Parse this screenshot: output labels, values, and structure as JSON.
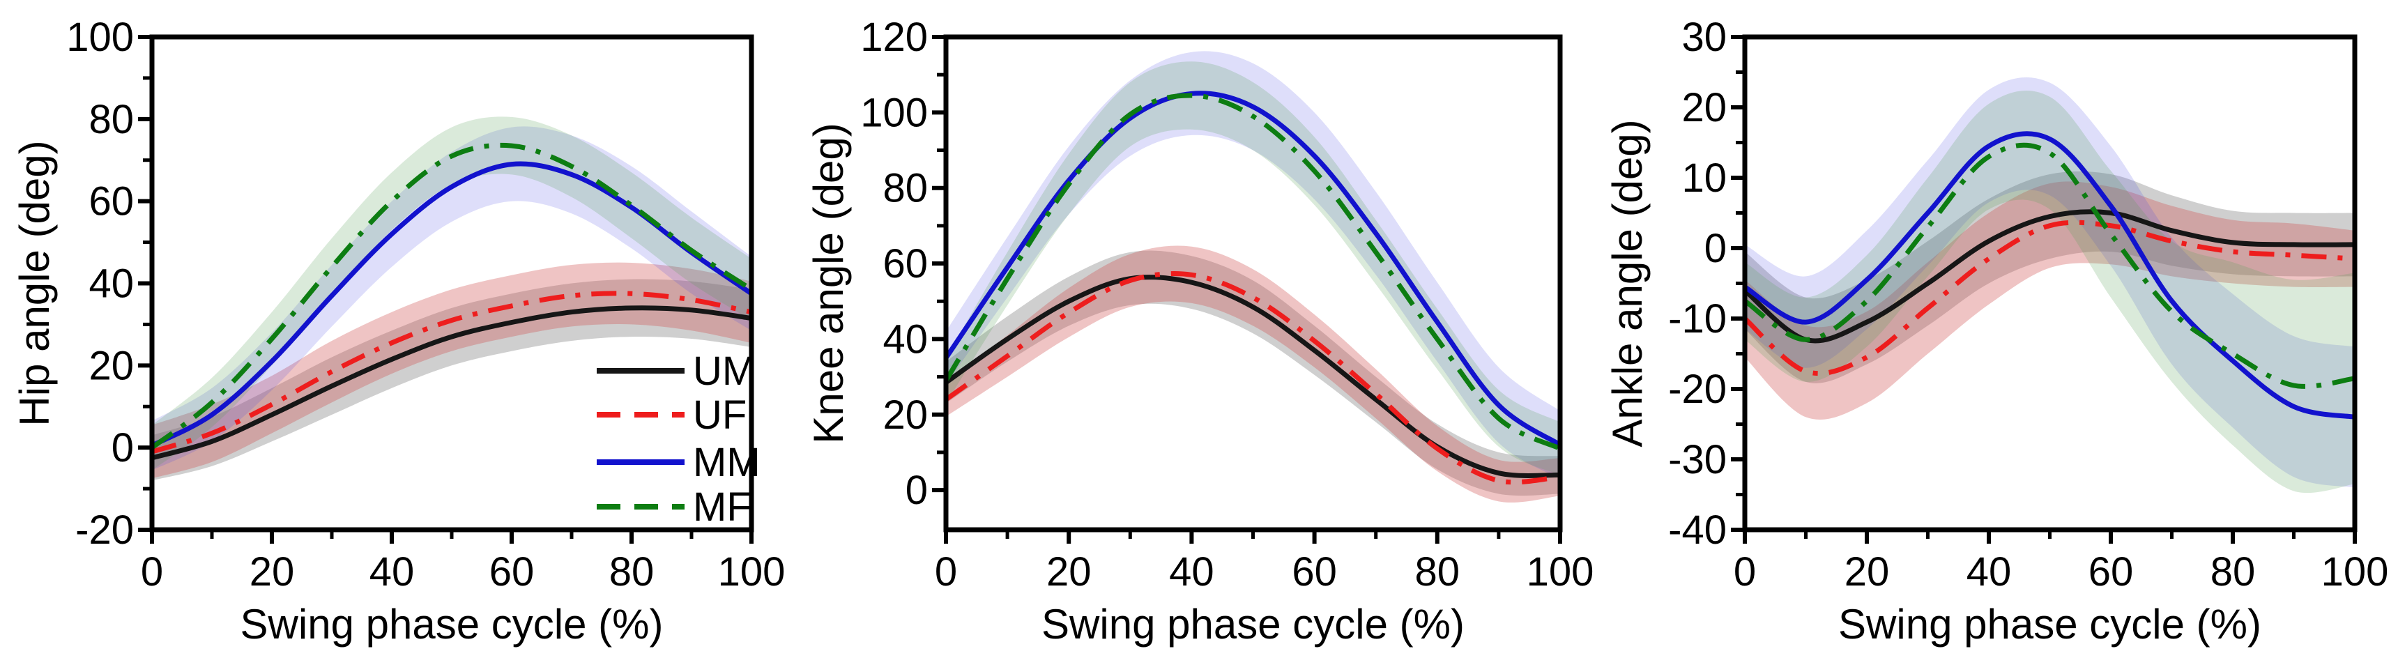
{
  "figure": {
    "background": "#ffffff",
    "description_labels": {
      "x_axis": "Swing phase cycle (%)",
      "hip": "Hip angle (deg)",
      "knee": "Knee angle (deg)",
      "ankle": "Ankle angle (deg)"
    }
  },
  "legend": {
    "entries": [
      "UM",
      "UF",
      "MM",
      "MF"
    ]
  },
  "chart_data": [
    {
      "type": "line",
      "title": "",
      "xlabel": "Swing phase cycle (%)",
      "ylabel": "Hip angle (deg)",
      "xlim": [
        0,
        100
      ],
      "ylim": [
        -20,
        100
      ],
      "xticks": [
        0,
        20,
        40,
        60,
        80,
        100
      ],
      "yticks": [
        -20,
        0,
        20,
        40,
        60,
        80,
        100
      ],
      "x_minor_step": 10,
      "y_minor_step": 10,
      "grid": false,
      "legend_position": "inside-lower-right",
      "x": [
        0,
        10,
        20,
        30,
        40,
        50,
        60,
        70,
        80,
        90,
        100
      ],
      "series": [
        {
          "name": "UM",
          "label": "UM",
          "color": "#161616",
          "band_color": "rgba(105,105,105,0.32)",
          "dashed": false,
          "values": [
            -2.5,
            1.5,
            8,
            15,
            21.5,
            27,
            30.5,
            33,
            34,
            33.5,
            31.5
          ],
          "band": [
            5.5,
            6,
            6.5,
            7,
            7,
            7,
            7,
            7,
            7,
            7,
            7
          ]
        },
        {
          "name": "UF",
          "label": "UF",
          "color": "#ee1d1d",
          "band_color": "rgba(205,75,75,0.33)",
          "dashed": true,
          "values": [
            -1,
            3.5,
            10.5,
            18.5,
            25.5,
            31,
            34.5,
            37,
            37.5,
            36,
            33
          ],
          "band": [
            6.5,
            7,
            7,
            7.5,
            7.5,
            7.5,
            7.5,
            7.5,
            7.5,
            7.5,
            7.5
          ]
        },
        {
          "name": "MM",
          "label": "MM",
          "color": "#1212cd",
          "band_color": "rgba(70,70,230,0.18)",
          "dashed": false,
          "values": [
            0.5,
            8,
            21,
            37,
            52,
            63.5,
            69,
            66.5,
            58.5,
            47.5,
            37.5
          ],
          "band": [
            6,
            6.5,
            7,
            7.5,
            8,
            8.5,
            9,
            9.5,
            10,
            10,
            9
          ]
        },
        {
          "name": "MF",
          "label": "MF",
          "color": "#0d7d12",
          "band_color": "rgba(85,160,85,0.22)",
          "dashed": true,
          "values": [
            0,
            11,
            26.5,
            44,
            60,
            71,
            73.5,
            68.5,
            59,
            48,
            38.5
          ],
          "band": [
            5.5,
            6,
            6.5,
            7,
            7,
            7,
            7,
            7.5,
            8,
            8,
            7.5
          ]
        }
      ]
    },
    {
      "type": "line",
      "title": "",
      "xlabel": "Swing phase cycle (%)",
      "ylabel": "Knee angle (deg)",
      "xlim": [
        0,
        100
      ],
      "ylim": [
        -10.5,
        120
      ],
      "xticks": [
        0,
        20,
        40,
        60,
        80,
        100
      ],
      "yticks": [
        0,
        20,
        40,
        60,
        80,
        100,
        120
      ],
      "x_minor_step": 10,
      "y_minor_step": 10,
      "grid": false,
      "legend_position": "none",
      "x": [
        0,
        10,
        20,
        30,
        40,
        50,
        60,
        70,
        80,
        90,
        100
      ],
      "series": [
        {
          "name": "UM",
          "label": "UM",
          "color": "#161616",
          "band_color": "rgba(105,105,105,0.32)",
          "dashed": false,
          "values": [
            28.5,
            40,
            50,
            56,
            55,
            48.5,
            37,
            24,
            11.5,
            4.5,
            4
          ],
          "band": [
            5.5,
            6,
            6.5,
            7,
            7,
            7,
            6.5,
            6,
            6,
            5.5,
            5
          ]
        },
        {
          "name": "UF",
          "label": "UF",
          "color": "#ee1d1d",
          "band_color": "rgba(205,75,75,0.33)",
          "dashed": true,
          "values": [
            24,
            35.5,
            47,
            55.5,
            57,
            51,
            39.5,
            25.5,
            11,
            2.5,
            3.5
          ],
          "band": [
            4.5,
            5.5,
            6.5,
            7,
            7.5,
            7.5,
            7,
            6.5,
            6,
            5.5,
            5
          ]
        },
        {
          "name": "MM",
          "label": "MM",
          "color": "#1212cd",
          "band_color": "rgba(70,70,230,0.18)",
          "dashed": false,
          "values": [
            35,
            59,
            82,
            98.5,
            105,
            101.5,
            88.5,
            68,
            44.5,
            22.5,
            12
          ],
          "band": [
            7,
            8,
            9,
            10,
            11,
            11.5,
            11.5,
            11,
            10.5,
            10,
            9
          ]
        },
        {
          "name": "MF",
          "label": "MF",
          "color": "#0d7d12",
          "band_color": "rgba(85,160,85,0.22)",
          "dashed": true,
          "values": [
            29,
            56,
            81,
            99.5,
            104.5,
            99,
            84.5,
            63,
            40,
            19,
            11
          ],
          "band": [
            6,
            7,
            8,
            8.5,
            9,
            9,
            9,
            8.5,
            8,
            7.5,
            7
          ]
        }
      ]
    },
    {
      "type": "line",
      "title": "",
      "xlabel": "Swing phase cycle (%)",
      "ylabel": "Ankle angle (deg)",
      "xlim": [
        0,
        100
      ],
      "ylim": [
        -40,
        30
      ],
      "xticks": [
        0,
        20,
        40,
        60,
        80,
        100
      ],
      "yticks": [
        -40,
        -30,
        -20,
        -10,
        0,
        10,
        20,
        30
      ],
      "x_minor_step": 10,
      "y_minor_step": 5,
      "grid": false,
      "legend_position": "none",
      "x": [
        0,
        10,
        20,
        30,
        40,
        50,
        60,
        70,
        80,
        90,
        100
      ],
      "series": [
        {
          "name": "UM",
          "label": "UM",
          "color": "#161616",
          "band_color": "rgba(105,105,105,0.32)",
          "dashed": false,
          "values": [
            -6,
            -13,
            -10.5,
            -5,
            1,
            4.5,
            5,
            2.5,
            0.8,
            0.5,
            0.5
          ],
          "band": [
            5.5,
            6,
            6,
            6,
            6,
            6,
            5.5,
            5,
            4.5,
            4.5,
            4.5
          ]
        },
        {
          "name": "UF",
          "label": "UF",
          "color": "#ee1d1d",
          "band_color": "rgba(205,75,75,0.33)",
          "dashed": true,
          "values": [
            -10,
            -17.5,
            -15.5,
            -8.5,
            -1.5,
            3.2,
            3.2,
            1,
            -0.5,
            -1,
            -1.5
          ],
          "band": [
            5.5,
            6.5,
            6.5,
            6.5,
            6.5,
            6,
            5.5,
            5,
            4.5,
            4.5,
            4
          ]
        },
        {
          "name": "MM",
          "label": "MM",
          "color": "#1212cd",
          "band_color": "rgba(70,70,230,0.18)",
          "dashed": false,
          "values": [
            -5.5,
            -10.5,
            -4.5,
            5,
            14.5,
            15.5,
            6,
            -7.5,
            -16,
            -22.5,
            -24
          ],
          "band": [
            6,
            6.5,
            7,
            7.5,
            8,
            8,
            8.5,
            9,
            9.5,
            10,
            10
          ]
        },
        {
          "name": "MF",
          "label": "MF",
          "color": "#0d7d12",
          "band_color": "rgba(85,160,85,0.22)",
          "dashed": true,
          "values": [
            -7.5,
            -13,
            -7.5,
            3,
            13,
            13.5,
            2,
            -9,
            -15,
            -19.5,
            -18.5
          ],
          "band": [
            5.5,
            6,
            6.5,
            7,
            7.5,
            8,
            9,
            10,
            13,
            15,
            15
          ]
        }
      ]
    }
  ]
}
